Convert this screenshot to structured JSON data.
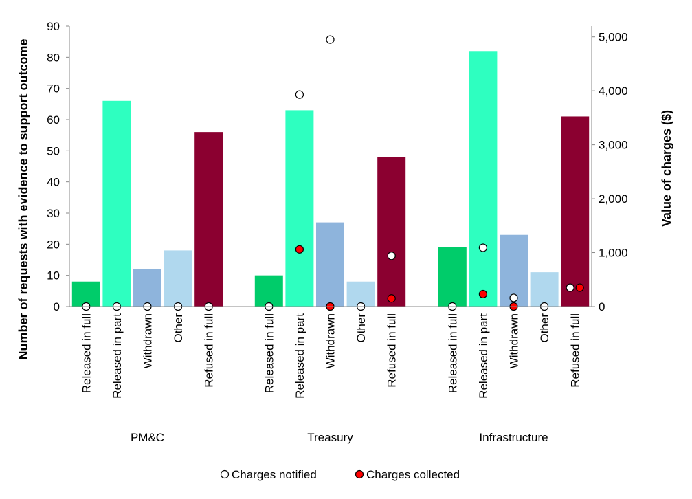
{
  "chart_data": {
    "type": "bar",
    "ylabel": "Number of requests with evidence to support outcome",
    "y2label": "Value of charges ($)",
    "ylim": [
      0,
      90
    ],
    "yticks": [
      0,
      10,
      20,
      30,
      40,
      50,
      60,
      70,
      80,
      90
    ],
    "y2lim": [
      0,
      5200
    ],
    "y2ticks": [
      0,
      1000,
      2000,
      3000,
      4000,
      5000
    ],
    "y2tick_labels": [
      "0",
      "1,000",
      "2,000",
      "3,000",
      "4,000",
      "5,000"
    ],
    "grid": false,
    "legend_position": "bottom",
    "groups": [
      {
        "name": "PM&C",
        "categories": [
          "Released in full",
          "Released in part",
          "Withdrawn",
          "Other",
          "Refused in full"
        ],
        "values": [
          8,
          66,
          12,
          18,
          56
        ],
        "charges_notified": [
          0,
          0,
          0,
          0,
          0
        ],
        "charges_collected": [
          null,
          null,
          null,
          null,
          null
        ]
      },
      {
        "name": "Treasury",
        "categories": [
          "Released in full",
          "Released in part",
          "Withdrawn",
          "Other",
          "Refused in full"
        ],
        "values": [
          10,
          63,
          27,
          8,
          48
        ],
        "charges_notified": [
          0,
          3930,
          4950,
          0,
          940
        ],
        "charges_collected": [
          null,
          1060,
          0,
          null,
          150
        ]
      },
      {
        "name": "Infrastructure",
        "categories": [
          "Released in full",
          "Released in part",
          "Withdrawn",
          "Other",
          "Refused in full"
        ],
        "values": [
          19,
          82,
          23,
          11,
          61
        ],
        "charges_notified": [
          0,
          1090,
          160,
          0,
          350
        ],
        "charges_collected": [
          null,
          230,
          0,
          null,
          350
        ]
      }
    ],
    "bar_colors": [
      "#00cc6a",
      "#2effc0",
      "#8eb4dc",
      "#b0d8ee",
      "#8b0030"
    ],
    "legend": [
      {
        "label": "Charges notified",
        "color": "#ffffff"
      },
      {
        "label": "Charges collected",
        "color": "#ff0000"
      }
    ]
  }
}
